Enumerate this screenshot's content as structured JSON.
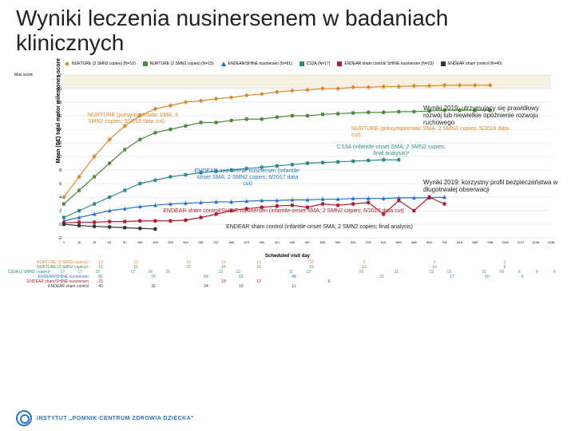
{
  "title": "Wyniki leczenia nusinersenem w badaniach klinicznych",
  "legend": {
    "items": [
      {
        "label": "NURTURE (3 SMN2 copies) (N=10)",
        "color": "#d98b2b",
        "shape": "diamond"
      },
      {
        "label": "NURTURE (2 SMN2 copies) (N=15)",
        "color": "#4b8b3b",
        "shape": "square"
      },
      {
        "label": "ENDEAR/SHINE nusinersen (N=81)",
        "color": "#2673c9",
        "shape": "triangle"
      },
      {
        "label": "CS3A (N=17)",
        "color": "#2c8a8a",
        "shape": "square"
      },
      {
        "label": "ENDEAR sham control/ SHINE nusinersen (N=23)",
        "color": "#b01c2e",
        "shape": "square"
      },
      {
        "label": "ENDEAR sham control (N=40)",
        "color": "#333",
        "shape": "square"
      }
    ]
  },
  "ylabel": "Mean (SE) total motor milestones score",
  "max_score": "Max score",
  "xlabel": "Scheduled visit day",
  "chart": {
    "xticks": [
      "1",
      "15",
      "29",
      "64",
      "92",
      "169",
      "183",
      "253",
      "302",
      "281",
      "337",
      "365",
      "379",
      "394",
      "421",
      "449",
      "457",
      "505",
      "540",
      "541",
      "578",
      "610",
      "659",
      "689",
      "694",
      "700",
      "818",
      "883",
      "938",
      "1004",
      "1072",
      "1135",
      "1198"
    ],
    "ylim": [
      -2,
      22
    ],
    "ytick_step": 2,
    "grid_color": "#cfd6dc",
    "bg": "#ffffff",
    "series": {
      "nurture3": {
        "color": "#d98b2b",
        "values": [
          4,
          7,
          10,
          12.5,
          14.5,
          16,
          17,
          17.5,
          18,
          18.2,
          18.5,
          18.7,
          19,
          19.2,
          19.5,
          19.7,
          19.8,
          20,
          20,
          20.2,
          20.2,
          20.3,
          20.3,
          20.4,
          20.4,
          20.5,
          20.5,
          20.5,
          20.5
        ],
        "marker": "diamond"
      },
      "nurture2": {
        "color": "#4b8b3b",
        "values": [
          3,
          5,
          7,
          9,
          11,
          12.5,
          13.5,
          14,
          14.5,
          15,
          15,
          15.3,
          15.5,
          15.5,
          15.8,
          16,
          16,
          16.2,
          16.3,
          16.4,
          16.5,
          16.5,
          16.6,
          16.6,
          16.7,
          16.8,
          16.8,
          16.8,
          16.8
        ],
        "marker": "square"
      },
      "cs3a": {
        "color": "#2c8a8a",
        "values": [
          1,
          2,
          3,
          4,
          5,
          6,
          6.5,
          7,
          7.3,
          7.6,
          7.8,
          8,
          8.2,
          8.4,
          8.6,
          8.8,
          9,
          9.1,
          9.2,
          9.3,
          9.4,
          9.5,
          9.5
        ],
        "marker": "square"
      },
      "endear_shine": {
        "color": "#2673c9",
        "values": [
          0.5,
          1,
          1.5,
          2,
          2.3,
          2.6,
          2.8,
          3,
          3.1,
          3.2,
          3.3,
          3.3,
          3.4,
          3.5,
          3.5,
          3.6,
          3.6,
          3.7,
          3.7,
          3.8,
          3.8,
          3.8,
          3.9,
          3.9,
          3.9,
          4
        ],
        "marker": "triangle"
      },
      "sham_shine": {
        "color": "#b01c2e",
        "values": [
          0.2,
          0.3,
          0.3,
          0.4,
          0.4,
          0.5,
          0.5,
          0.5,
          0.6,
          1,
          1.5,
          2,
          2.3,
          2.5,
          2.7,
          2.8,
          2.5,
          3,
          2.8,
          3,
          3.2,
          1.5,
          3.5,
          2,
          4,
          3
        ],
        "marker": "square"
      },
      "sham": {
        "color": "#333",
        "values": [
          0,
          -0.2,
          -0.3,
          -0.4,
          -0.5,
          -0.6,
          -0.7
        ],
        "marker": "square"
      }
    }
  },
  "annotations": {
    "nurture_top": "NURTURE (presymptomatic SMA; 3 SMN2 copies; 5/2018 data cut)",
    "nurture_mid": "NURTURE (presymptomatic SMA; 2 SMN2 copies; 5/2018 data cut)",
    "cs3a": "CS3A (infantile-onset SMA; 2 SMN2 copies; final analysis)ᵃ",
    "endear_mid": "ENDEAR and SHINE nusinersen (infantile-onset SMA; 2 SMN2 copies; 6/2017 data cut)",
    "endear_sham": "ENDEAR sham control/SHINE nusinersen (infantile-onset SMA; 2 SMN2 copies; 6/2017 data cut)",
    "sham": "ENDEAR sham control (infantile-onset SMA; 2 SMN2 copies; final analysis)",
    "wyniki_top": "Wyniki 2019: utrzymujący się prawidłowy rozwój lub niewielkie opóźnienie rozwoju ruchowego",
    "wyniki_bottom": "Wyniki 2019: korzystny profil bezpieczeństwa w długotrwałej obserwacji"
  },
  "table": {
    "rows": [
      {
        "label": "NURTURE (3 SMN2 copies)ᵃ",
        "cls": "r-nurture3",
        "cells": [
          "10",
          "",
          "10",
          "",
          "",
          "10",
          "",
          "10",
          "",
          "10",
          "",
          "",
          "10",
          "",
          "",
          "9",
          "",
          "",
          "",
          "9",
          "",
          "",
          "",
          "9",
          ""
        ]
      },
      {
        "label": "NURTURE (2 SMN2 copies)ᵃ",
        "cls": "r-nurture2",
        "cells": [
          "15",
          "",
          "15",
          "",
          "",
          "15",
          "",
          "15",
          "",
          "15",
          "",
          "",
          "15",
          "",
          "",
          "13",
          "",
          "",
          "",
          "10",
          "",
          "",
          "",
          "9",
          ""
        ]
      },
      {
        "label": "CS3A (2 SMN2 copies)ᵃ",
        "cls": "r-cs3a",
        "cells": [
          "17",
          "17",
          "16",
          "",
          "17",
          "16",
          "15",
          "",
          "",
          "13",
          "12",
          "",
          "",
          "11",
          "12",
          "",
          "",
          "10",
          "",
          "11",
          "",
          "13",
          "13",
          "",
          "11",
          "10",
          "9",
          "9",
          "6"
        ]
      },
      {
        "label": "ENDEAR/SHINE nusinersen",
        "cls": "r-endshine",
        "cells": [
          "81",
          "",
          "",
          "70",
          "",
          "",
          "69",
          "",
          "51",
          "",
          "",
          "48",
          "",
          "",
          "",
          "",
          "31",
          "",
          "",
          "",
          "17",
          "",
          "10",
          "",
          "9",
          ""
        ]
      },
      {
        "label": "ENDEAR sham/SHINE nusinersen",
        "cls": "r-sham-shine",
        "cells": [
          "23",
          "",
          "",
          "",
          "",
          "",
          "",
          "18",
          "",
          "12",
          "",
          "",
          "",
          "6",
          "",
          "",
          "",
          "",
          "",
          "",
          "",
          "",
          "",
          "",
          ""
        ]
      },
      {
        "label": "ENDEAR sham control",
        "cls": "r-sham",
        "cells": [
          "40",
          "",
          "",
          "32",
          "",
          "",
          "24",
          "",
          "16",
          "",
          "",
          "11",
          "",
          "",
          "",
          "",
          "",
          "",
          "",
          "",
          "",
          "",
          "",
          "",
          ""
        ]
      }
    ]
  },
  "footer": "INSTYTUT „POMNIK-CENTRUM ZDROWIA DZIECKA\""
}
